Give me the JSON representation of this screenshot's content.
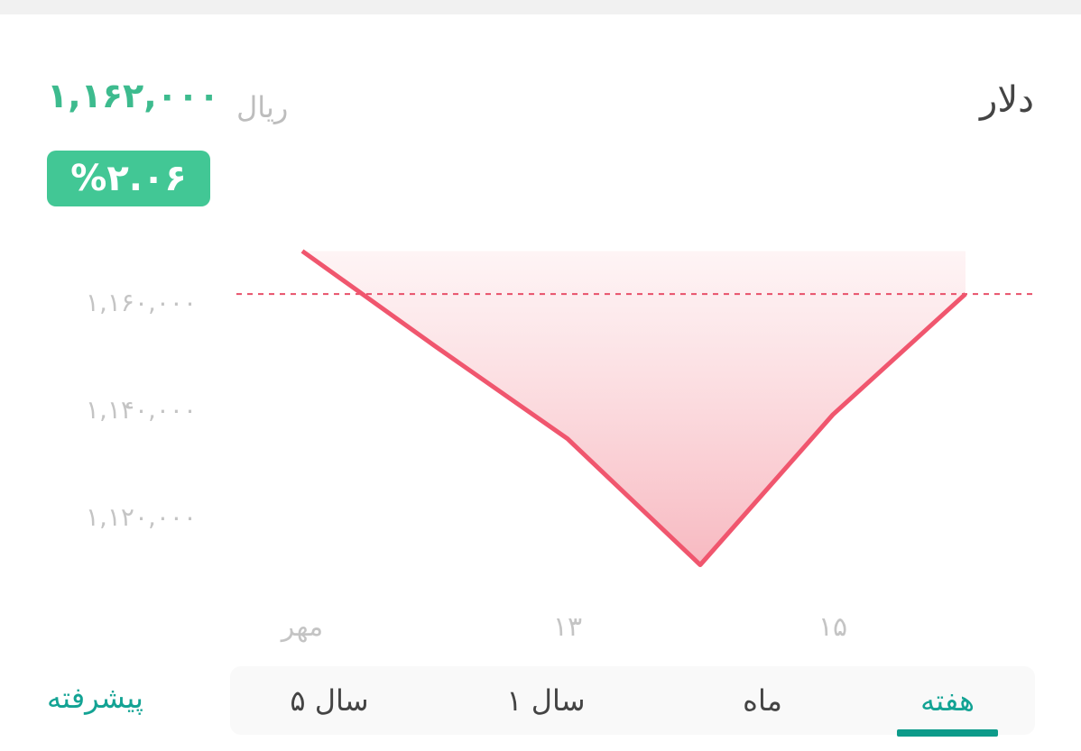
{
  "header": {
    "title": "دلار",
    "price": "۱,۱۶۲,۰۰۰",
    "unit": "ریال",
    "change": "%۲.۰۶"
  },
  "colors": {
    "accent": "#3dbb8e",
    "line": "#f0566e",
    "tab_active": "#13a394"
  },
  "chart_data": {
    "type": "area",
    "categories": [
      "مهر",
      "",
      "۱۳",
      "",
      "۱۵",
      ""
    ],
    "values": [
      1169500,
      1151800,
      1134500,
      1111000,
      1139000,
      1161500
    ],
    "reference_line": {
      "value": 1161500,
      "style": "dashed"
    },
    "y_ticks": [
      {
        "value": 1160000,
        "label": "۱,۱۶۰,۰۰۰"
      },
      {
        "value": 1140000,
        "label": "۱,۱۴۰,۰۰۰"
      },
      {
        "value": 1120000,
        "label": "۱,۱۲۰,۰۰۰"
      }
    ],
    "grid": false
  },
  "tabs": [
    {
      "label": "هفته",
      "active": true
    },
    {
      "label": "ماه",
      "active": false
    },
    {
      "label": "۱ سال",
      "active": false
    },
    {
      "label": "۵ سال",
      "active": false
    }
  ],
  "advanced_label": "پیشرفته"
}
